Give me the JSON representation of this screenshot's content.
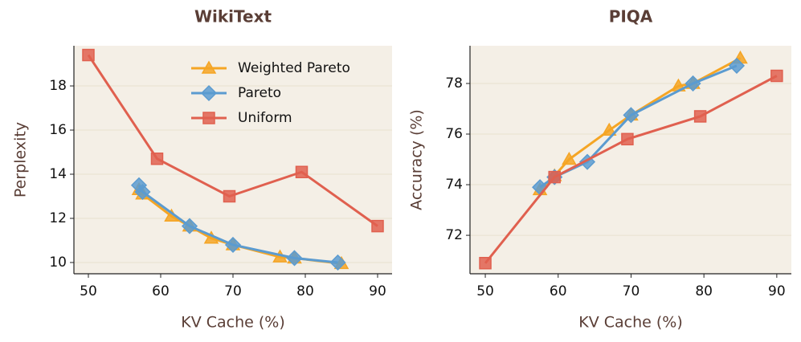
{
  "chart_data": [
    {
      "type": "line",
      "title": "WikiText",
      "xlabel": "KV Cache (%)",
      "ylabel": "Perplexity",
      "xlim": [
        48,
        92
      ],
      "xticks": [
        50,
        60,
        70,
        80,
        90
      ],
      "ylim": [
        9.49,
        19.82
      ],
      "yticks": [
        10,
        12,
        14,
        16,
        18
      ],
      "grid": "y",
      "legend": "upper right",
      "series": [
        {
          "name": "Weighted Pareto",
          "color": "#f5a524",
          "marker": "triangle",
          "x": [
            57,
            57.5,
            61.5,
            64,
            67,
            70,
            76.5,
            78.5,
            85
          ],
          "values": [
            13.3,
            13.1,
            12.1,
            11.65,
            11.1,
            10.8,
            10.25,
            10.2,
            9.95
          ]
        },
        {
          "name": "Pareto",
          "color": "#5b9bd0",
          "marker": "diamond",
          "x": [
            57,
            57.5,
            64,
            70,
            78.5,
            84.5
          ],
          "values": [
            13.5,
            13.2,
            11.65,
            10.8,
            10.2,
            10.0
          ]
        },
        {
          "name": "Uniform",
          "color": "#e0604f",
          "marker": "square",
          "x": [
            50,
            59.5,
            69.5,
            79.5,
            90
          ],
          "values": [
            19.4,
            14.7,
            13.0,
            14.1,
            11.65
          ]
        }
      ]
    },
    {
      "type": "line",
      "title": "PIQA",
      "xlabel": "KV Cache (%)",
      "ylabel": "Accuracy (%)",
      "xlim": [
        47.9,
        92
      ],
      "xticks": [
        50,
        60,
        70,
        80,
        90
      ],
      "ylim": [
        70.48,
        79.49
      ],
      "yticks": [
        72,
        74,
        76,
        78
      ],
      "grid": "y",
      "series": [
        {
          "name": "Weighted Pareto",
          "color": "#f5a524",
          "marker": "triangle",
          "x": [
            57.5,
            59.5,
            61.5,
            67,
            70,
            76.5,
            78.5,
            85
          ],
          "values": [
            73.8,
            74.35,
            75.0,
            76.15,
            76.75,
            77.9,
            78.0,
            79.0
          ]
        },
        {
          "name": "Pareto",
          "color": "#5b9bd0",
          "marker": "diamond",
          "x": [
            57.5,
            59.5,
            64,
            70,
            78.5,
            84.5
          ],
          "values": [
            73.9,
            74.3,
            74.9,
            76.75,
            78.0,
            78.7
          ]
        },
        {
          "name": "Uniform",
          "color": "#e0604f",
          "marker": "square",
          "x": [
            50,
            59.5,
            69.5,
            79.5,
            90
          ],
          "values": [
            70.9,
            74.3,
            75.8,
            76.7,
            78.3
          ]
        }
      ]
    }
  ]
}
